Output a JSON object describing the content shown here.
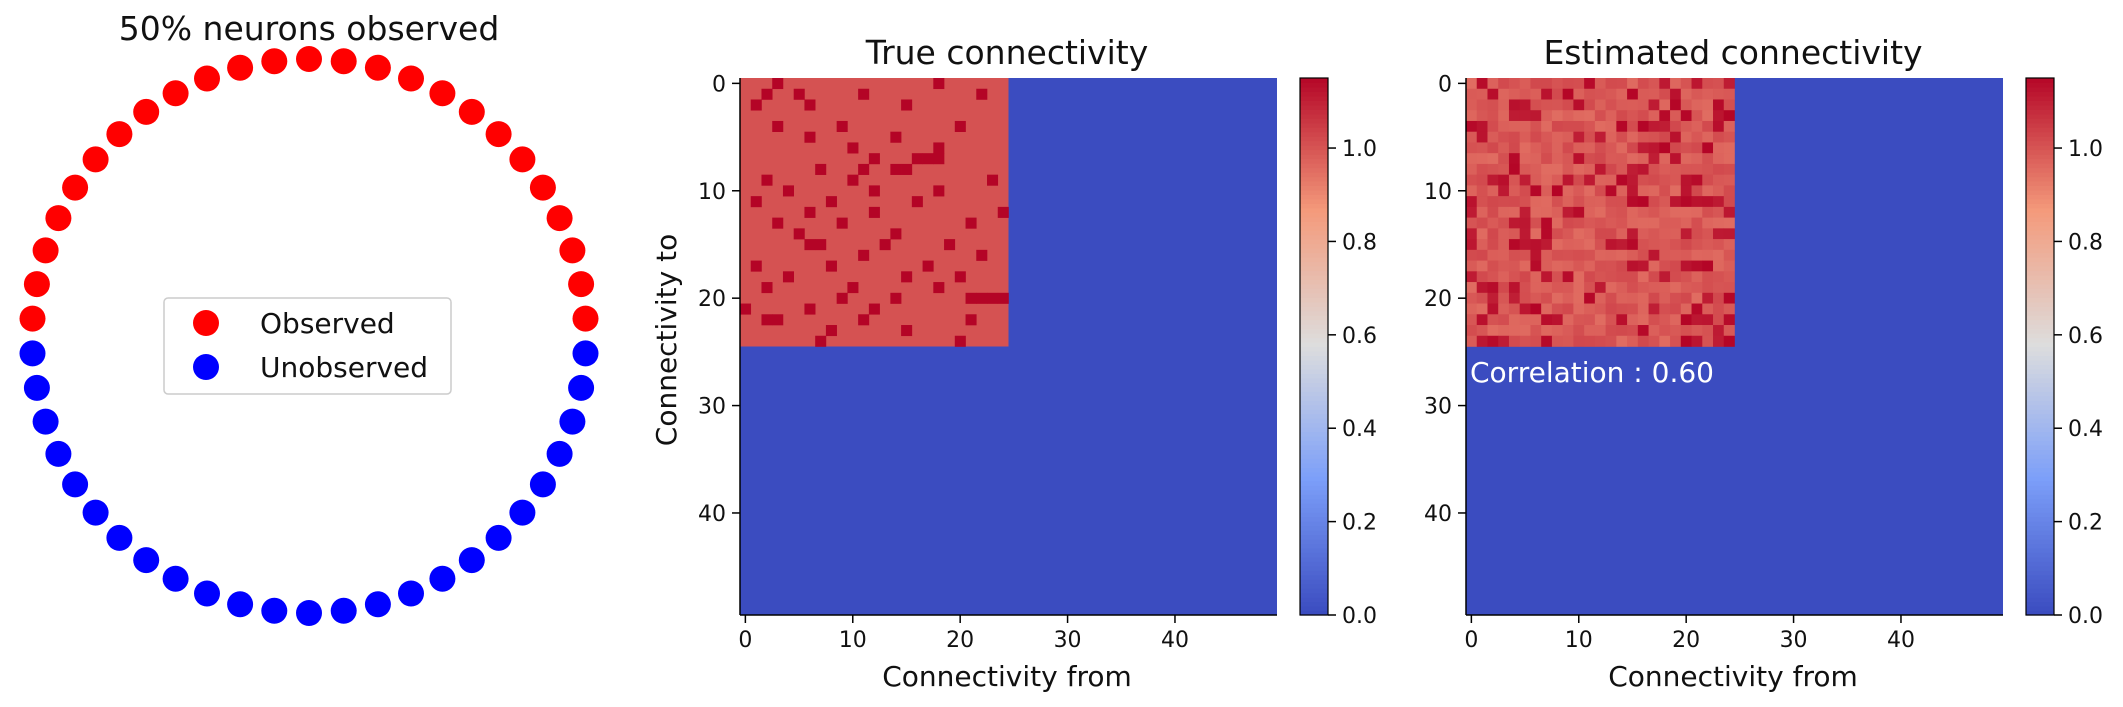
{
  "chart_data": [
    {
      "type": "scatter",
      "title": "50% neurons observed",
      "neuron_count": 50,
      "observed_count": 25,
      "series": [
        {
          "name": "Observed",
          "color": "#ff0000"
        },
        {
          "name": "Unobserved",
          "color": "#0000ff"
        }
      ],
      "legend_position": "center"
    },
    {
      "type": "heatmap",
      "title": "True connectivity",
      "xlabel": "Connectivity from",
      "ylabel": "Connectivity to",
      "size": 50,
      "block_size": 25,
      "colormap": "coolwarm",
      "vmin": 0.0,
      "vmax": 1.15,
      "background_value": 0.0,
      "block_base_value": 1.0,
      "strong_value": 1.15,
      "xticks": [
        0,
        10,
        20,
        30,
        40
      ],
      "yticks": [
        0,
        10,
        20,
        30,
        40
      ],
      "colorbar_ticks": [
        "0.0",
        "0.2",
        "0.4",
        "0.6",
        "0.8",
        "1.0"
      ],
      "strong_cells": [
        [
          0,
          3
        ],
        [
          0,
          18
        ],
        [
          1,
          2
        ],
        [
          1,
          5
        ],
        [
          1,
          11
        ],
        [
          1,
          22
        ],
        [
          2,
          1
        ],
        [
          2,
          6
        ],
        [
          2,
          15
        ],
        [
          4,
          3
        ],
        [
          4,
          9
        ],
        [
          4,
          20
        ],
        [
          5,
          6
        ],
        [
          5,
          14
        ],
        [
          6,
          10
        ],
        [
          6,
          18
        ],
        [
          7,
          12
        ],
        [
          7,
          16
        ],
        [
          7,
          17
        ],
        [
          7,
          18
        ],
        [
          8,
          7
        ],
        [
          8,
          11
        ],
        [
          8,
          14
        ],
        [
          8,
          15
        ],
        [
          9,
          2
        ],
        [
          9,
          10
        ],
        [
          9,
          23
        ],
        [
          10,
          4
        ],
        [
          10,
          12
        ],
        [
          10,
          18
        ],
        [
          11,
          1
        ],
        [
          11,
          8
        ],
        [
          11,
          16
        ],
        [
          12,
          6
        ],
        [
          12,
          12
        ],
        [
          12,
          24
        ],
        [
          13,
          3
        ],
        [
          13,
          9
        ],
        [
          13,
          21
        ],
        [
          14,
          5
        ],
        [
          14,
          14
        ],
        [
          15,
          6
        ],
        [
          15,
          7
        ],
        [
          15,
          13
        ],
        [
          15,
          19
        ],
        [
          16,
          11
        ],
        [
          16,
          22
        ],
        [
          17,
          1
        ],
        [
          17,
          8
        ],
        [
          17,
          17
        ],
        [
          18,
          4
        ],
        [
          18,
          15
        ],
        [
          18,
          20
        ],
        [
          19,
          2
        ],
        [
          19,
          10
        ],
        [
          19,
          18
        ],
        [
          20,
          9
        ],
        [
          20,
          14
        ],
        [
          20,
          21
        ],
        [
          20,
          22
        ],
        [
          20,
          23
        ],
        [
          20,
          24
        ],
        [
          21,
          0
        ],
        [
          21,
          6
        ],
        [
          21,
          12
        ],
        [
          22,
          2
        ],
        [
          22,
          3
        ],
        [
          22,
          11
        ],
        [
          22,
          21
        ],
        [
          23,
          8
        ],
        [
          23,
          15
        ],
        [
          24,
          7
        ],
        [
          24,
          20
        ]
      ]
    },
    {
      "type": "heatmap",
      "title": "Estimated connectivity",
      "xlabel": "Connectivity from",
      "ylabel": "",
      "size": 50,
      "block_size": 25,
      "colormap": "coolwarm",
      "vmin": 0.0,
      "vmax": 1.15,
      "background_value": 0.0,
      "block_base_value": 1.0,
      "block_value_range": [
        0.95,
        1.15
      ],
      "xticks": [
        0,
        10,
        20,
        30,
        40
      ],
      "yticks": [
        0,
        10,
        20,
        30,
        40
      ],
      "colorbar_ticks": [
        "0.0",
        "0.2",
        "0.4",
        "0.6",
        "0.8",
        "1.0"
      ],
      "annotation": "Correlation : 0.60"
    }
  ]
}
